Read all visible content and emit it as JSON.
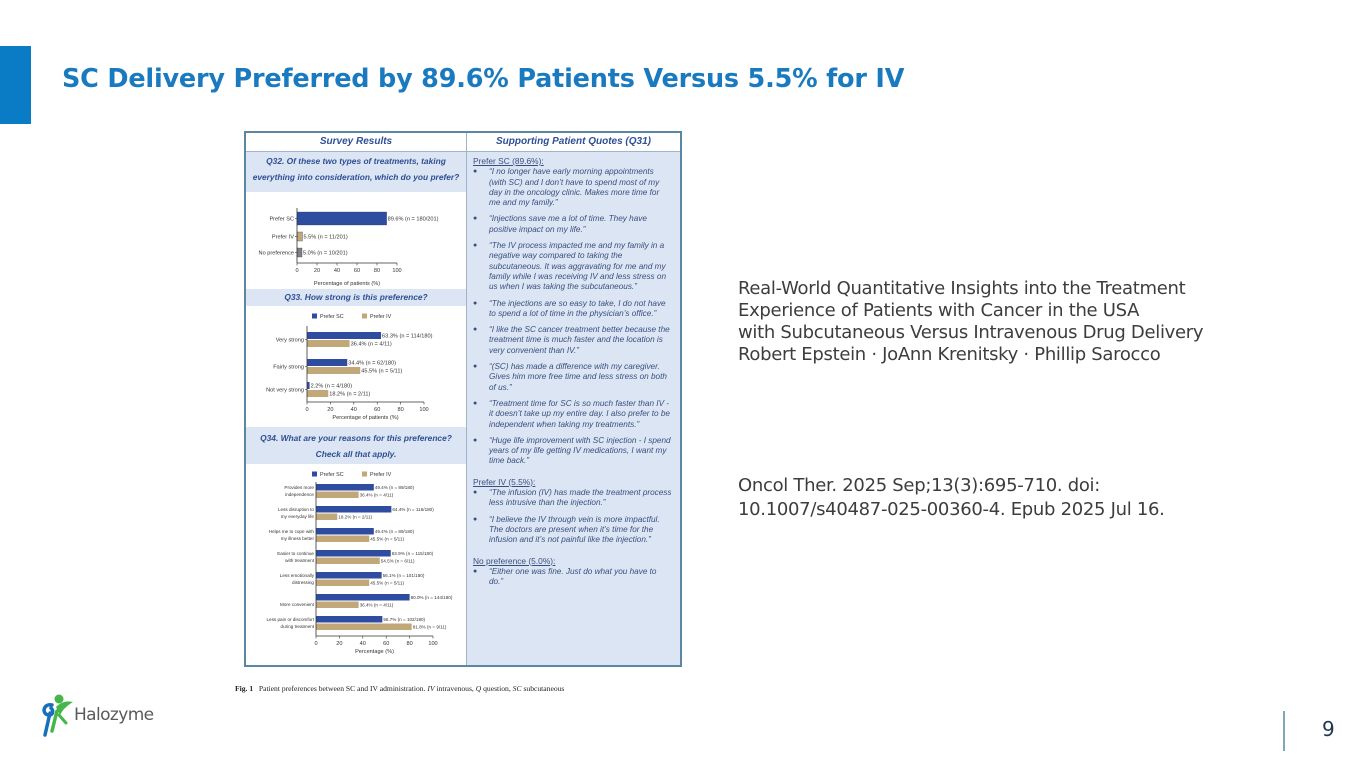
{
  "slide": {
    "title": "SC Delivery Preferred by 89.6% Patients Versus 5.5% for IV",
    "page_number": "9",
    "accent_color": "#0a7cc6",
    "title_color": "#1a7ac0",
    "logo": {
      "text": "Halozyme",
      "icon": "halozyme-figure-logo"
    }
  },
  "citation": {
    "lines": [
      "Real-World Quantitative Insights into the Treatment",
      "Experience of Patients with Cancer in the USA",
      "with Subcutaneous Versus Intravenous Drug Delivery",
      "Robert Epstein  · JoAnn Krenitsky  · Phillip Sarocco"
    ],
    "reference_lines": [
      "Oncol Ther. 2025 Sep;13(3):695-710. doi:",
      "10.1007/s40487-025-00360-4. Epub 2025 Jul 16."
    ]
  },
  "figure": {
    "left_header": "Survey Results",
    "right_header": "Supporting Patient Quotes (Q31)",
    "caption": {
      "label": "Fig. 1",
      "text_a": "Patient preferences between SC and IV administration.",
      "iv": "IV",
      "text_b": "intravenous,",
      "q": "Q",
      "text_c": "question,",
      "sc": "SC",
      "text_d": "subcutaneous"
    },
    "legend": {
      "sc": "Prefer SC",
      "iv": "Prefer IV"
    },
    "colors": {
      "sc": "#2f4da0",
      "iv": "#c2a878",
      "none": "#808080",
      "panel": "#dbe5f3",
      "heading": "#2f4f94"
    },
    "quotes": {
      "sections": [
        {
          "title": "Prefer SC (89.6%):",
          "items": [
            "“I no longer have early morning appointments (with SC) and I don’t have to spend most of my day in the oncology clinic. Makes more time for me and my family.”",
            "“Injections save me a lot of time. They have positive impact on my life.”",
            "“The IV process impacted me and my family in a negative way compared to taking the subcutaneous. It was aggravating for me and my family while I was receiving IV and less stress on us when I was taking the subcutaneous.”",
            "“The injections are so easy to take, I do not have to spend a lot of time in the physician’s office.”",
            "“I like the SC cancer treatment better because the treatment time is much faster and the location is very convenient than IV.”",
            "“(SC) has made a difference with my caregiver. Gives him more free time and less stress on both of us.”",
            "“Treatment time for SC is so much faster than IV - it doesn’t take up my entire day. I also prefer to be independent when taking my treatments.”",
            "“Huge life improvement with SC injection - I spend years of my life getting IV medications, I want my time back.”"
          ]
        },
        {
          "title": "Prefer IV (5.5%):",
          "items": [
            "“The infusion (IV) has made the treatment process less intrusive than the injection.”",
            "“I believe the IV through vein is more impactful. The doctors are present when it’s time for the infusion and it’s not painful like the injection.”"
          ]
        },
        {
          "title": "No preference (5.0%):",
          "items": [
            "“Either one was fine. Just do what you have to do.”"
          ]
        }
      ]
    }
  },
  "chart_data": [
    {
      "type": "bar",
      "orientation": "horizontal",
      "title": "Q32. Of these two types of treatments, taking everything into consideration, which do you prefer?",
      "categories": [
        "Prefer SC",
        "Prefer IV",
        "No preference"
      ],
      "values": [
        89.6,
        5.5,
        5.0
      ],
      "labels": [
        "89.6% (n = 180/201)",
        "5.5% (n = 11/201)",
        "5.0% (n = 10/201)"
      ],
      "colors": [
        "#2f4da0",
        "#c2a878",
        "#808080"
      ],
      "xlabel": "Percentage of patients  (%)",
      "ylabel": "",
      "xlim": [
        0,
        100
      ],
      "xticks": [
        0,
        20,
        40,
        60,
        80,
        100
      ],
      "grid": false,
      "legend": null
    },
    {
      "type": "bar",
      "orientation": "horizontal",
      "title": "Q33. How strong is this preference?",
      "categories": [
        "Very strong",
        "Fairly strong",
        "Not very strong"
      ],
      "series": [
        {
          "name": "Prefer SC",
          "values": [
            63.3,
            34.4,
            2.2
          ],
          "labels": [
            "63.3% (n = 114/180)",
            "34.4% (n = 62/180)",
            "2.2% (n = 4/180)"
          ]
        },
        {
          "name": "Prefer IV",
          "values": [
            36.4,
            45.5,
            18.2
          ],
          "labels": [
            "36.4% (n = 4/11)",
            "45.5% (n = 5/11)",
            "18.2% (n = 2/11)"
          ]
        }
      ],
      "xlabel": "Percentage of patients (%)",
      "xlim": [
        0,
        100
      ],
      "xticks": [
        0,
        20,
        40,
        60,
        80,
        100
      ],
      "grid": false,
      "legend": "top"
    },
    {
      "type": "bar",
      "orientation": "horizontal",
      "title": "Q34. What are your reasons for this preference? Check all that apply.",
      "categories": [
        "Provides more independence",
        "Less disruption to my everyday life",
        "Helps me to cope with my illness better",
        "Easier to continue with treatment",
        "Less emotionally distressing",
        "More convenient",
        "Less pain or discomfort during treatment"
      ],
      "series": [
        {
          "name": "Prefer SC",
          "values": [
            49.4,
            64.4,
            49.4,
            63.9,
            56.1,
            80.0,
            56.7
          ],
          "labels": [
            "49.4% (n = 89/180)",
            "64.4% (n = 116/180)",
            "49.4% (n = 89/180)",
            "63.9% (n = 115/180)",
            "56.1% (n = 101/180)",
            "80.0% (n = 144/180)",
            "56.7% (n = 102/180)"
          ]
        },
        {
          "name": "Prefer IV",
          "values": [
            36.4,
            18.2,
            45.5,
            54.5,
            45.5,
            36.4,
            81.8
          ],
          "labels": [
            "36.4% (n = 4/11)",
            "18.2% (n = 2/11)",
            "45.5% (n = 5/11)",
            "54.5% (n = 6/11)",
            "45.5% (n = 5/11)",
            "36.4% (n = 4/11)",
            "81.8% (n = 9/11)"
          ]
        }
      ],
      "xlabel": "Percentage  (%)",
      "xlim": [
        0,
        100
      ],
      "xticks": [
        0,
        20,
        40,
        60,
        80,
        100
      ],
      "grid": false,
      "legend": "top"
    }
  ]
}
